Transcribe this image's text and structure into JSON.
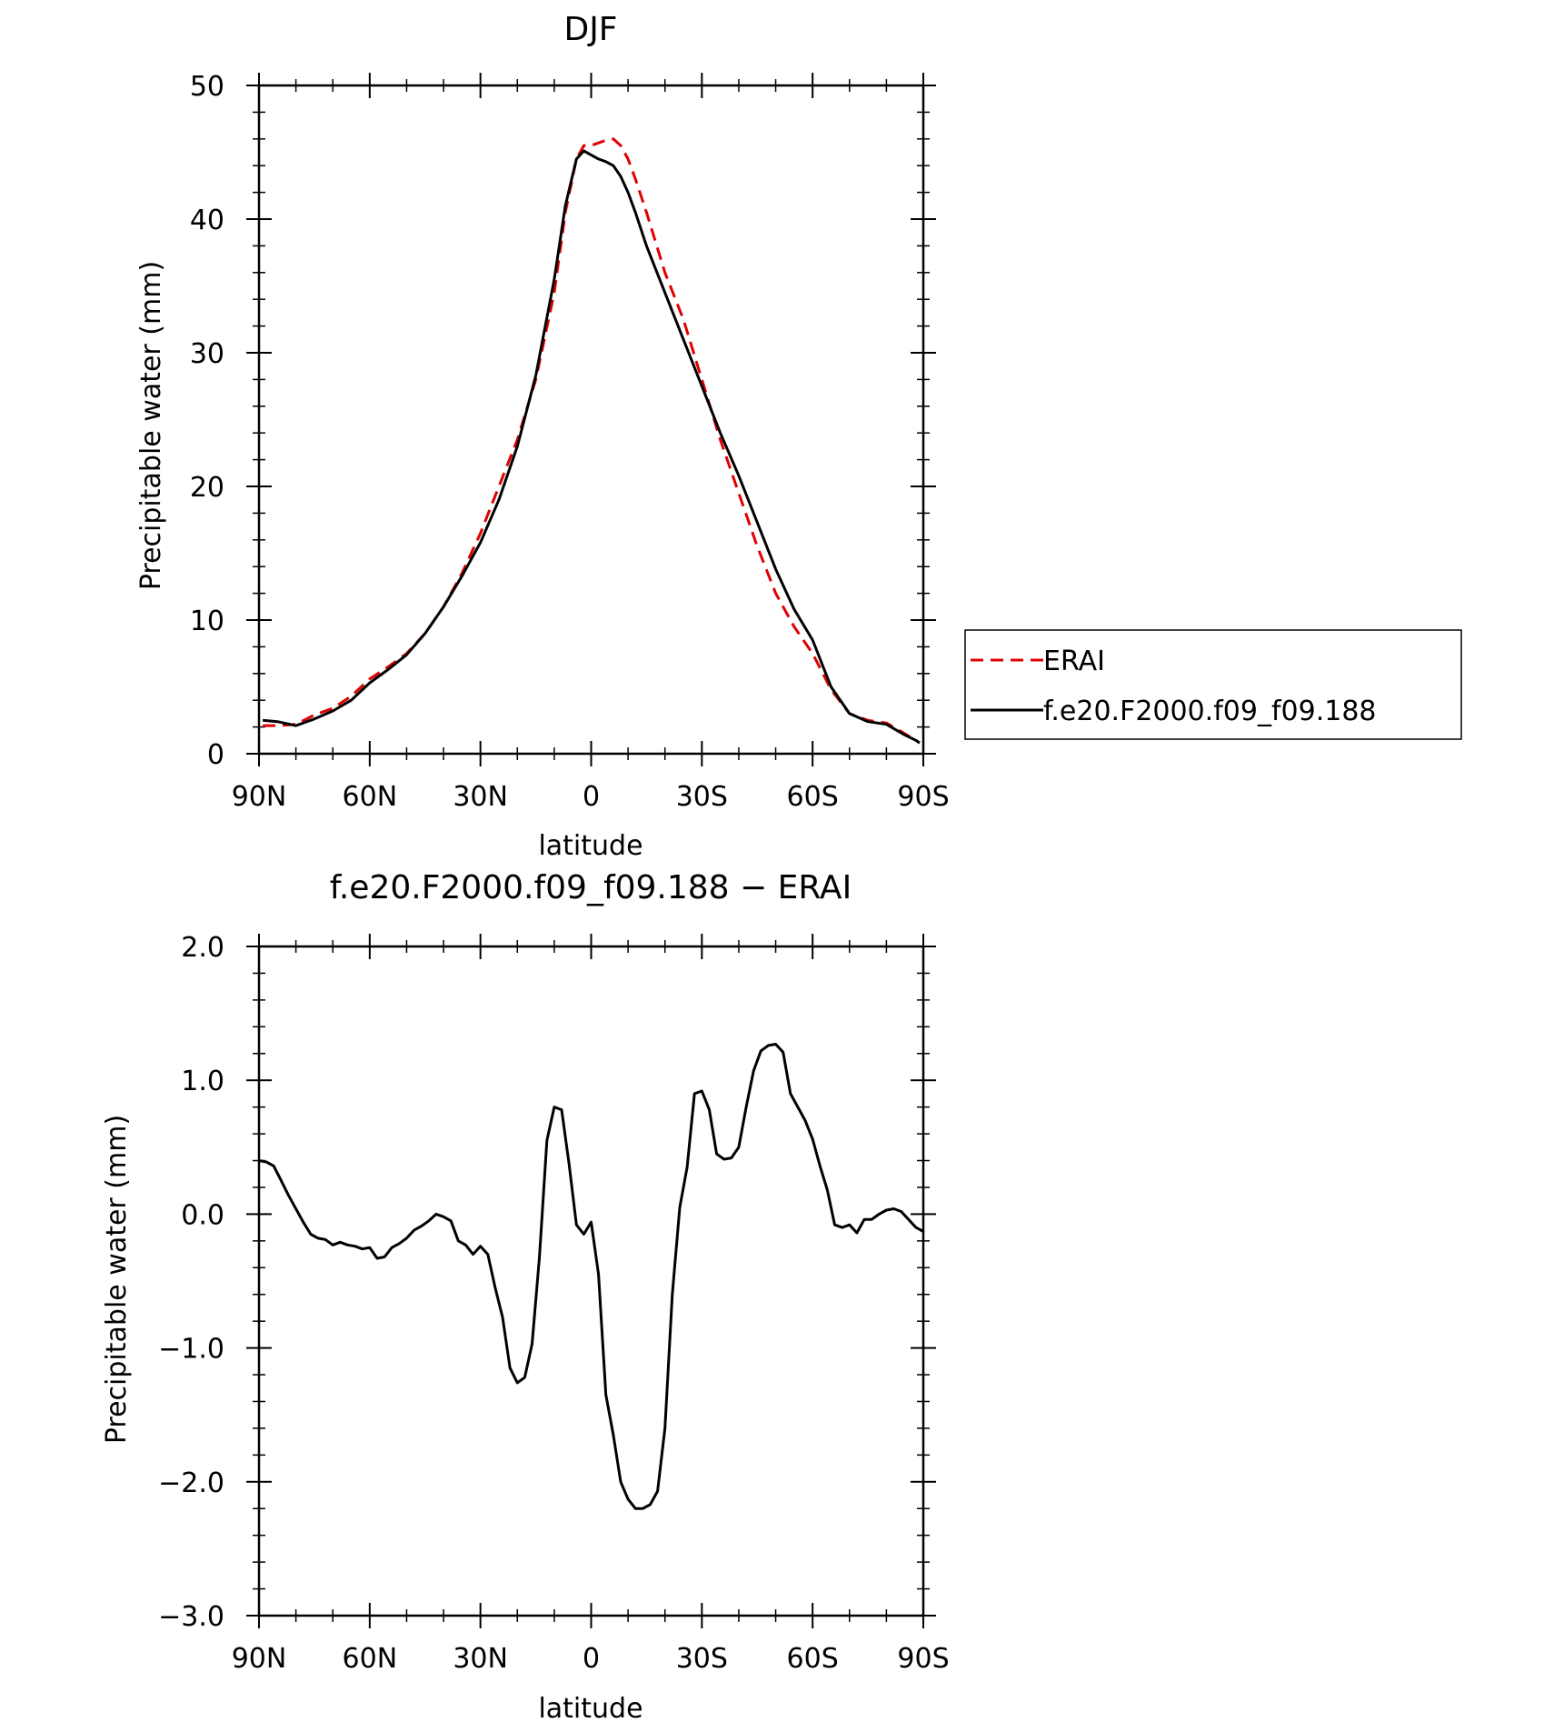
{
  "colors": {
    "erai": "#e00000",
    "model": "#000000",
    "axes": "#000000",
    "background": "#ffffff"
  },
  "chart_data": [
    {
      "type": "line",
      "title": "DJF",
      "xlabel": "latitude",
      "ylabel": "Precipitable water (mm)",
      "xlim": [
        90,
        -90
      ],
      "ylim": [
        0,
        50
      ],
      "x_ticks": [
        90,
        60,
        30,
        0,
        -30,
        -60,
        -90
      ],
      "x_tick_labels": [
        "90N",
        "60N",
        "30N",
        "0",
        "30S",
        "60S",
        "90S"
      ],
      "y_ticks": [
        0,
        10,
        20,
        30,
        40,
        50
      ],
      "y_tick_labels": [
        "0",
        "10",
        "20",
        "30",
        "40",
        "50"
      ],
      "legend": {
        "position": "right",
        "entries": [
          "ERAI",
          "f.e20.F2000.f09_f09.188"
        ]
      },
      "series": [
        {
          "name": "ERAI",
          "style": "dashed",
          "color": "#e00000",
          "x": [
            89,
            85,
            80,
            75,
            70,
            65,
            60,
            55,
            50,
            45,
            40,
            35,
            30,
            25,
            20,
            15,
            10,
            7,
            4,
            2,
            0,
            -2,
            -4,
            -6,
            -8,
            -10,
            -12,
            -15,
            -20,
            -25,
            -30,
            -35,
            -40,
            -45,
            -50,
            -55,
            -60,
            -65,
            -70,
            -75,
            -80,
            -85,
            -88,
            -89
          ],
          "y": [
            2.1,
            2.1,
            2.2,
            2.9,
            3.4,
            4.3,
            5.6,
            6.5,
            7.5,
            9.0,
            11.0,
            13.5,
            16.5,
            20.0,
            23.5,
            28.0,
            34.5,
            40.5,
            44.5,
            45.5,
            45.5,
            45.7,
            45.9,
            46.0,
            45.5,
            44.5,
            43.0,
            40.5,
            36.0,
            32.5,
            28.0,
            23.5,
            19.5,
            15.5,
            12.0,
            9.5,
            7.5,
            4.8,
            3.0,
            2.5,
            2.3,
            1.5,
            1.0,
            0.8
          ]
        },
        {
          "name": "f.e20.F2000.f09_f09.188",
          "style": "solid",
          "color": "#000000",
          "x": [
            89,
            85,
            80,
            75,
            70,
            65,
            60,
            55,
            50,
            45,
            40,
            35,
            30,
            25,
            20,
            15,
            10,
            7,
            4,
            2,
            0,
            -2,
            -4,
            -6,
            -8,
            -10,
            -12,
            -15,
            -20,
            -25,
            -30,
            -35,
            -40,
            -45,
            -50,
            -55,
            -60,
            -65,
            -70,
            -75,
            -80,
            -85,
            -88,
            -89
          ],
          "y": [
            2.5,
            2.4,
            2.1,
            2.6,
            3.2,
            4.0,
            5.3,
            6.3,
            7.4,
            9.0,
            11.0,
            13.3,
            15.8,
            19.0,
            23.0,
            28.3,
            35.5,
            41.0,
            44.5,
            45.1,
            44.8,
            44.5,
            44.3,
            44.0,
            43.2,
            42.0,
            40.5,
            38.0,
            34.5,
            31.0,
            27.5,
            24.0,
            20.8,
            17.3,
            13.8,
            10.8,
            8.5,
            5.0,
            3.0,
            2.4,
            2.2,
            1.4,
            1.0,
            0.8
          ]
        }
      ]
    },
    {
      "type": "line",
      "title": "f.e20.F2000.f09_f09.188 − ERAI",
      "xlabel": "latitude",
      "ylabel": "Precipitable water (mm)",
      "xlim": [
        90,
        -90
      ],
      "ylim": [
        -3,
        2
      ],
      "x_ticks": [
        90,
        60,
        30,
        0,
        -30,
        -60,
        -90
      ],
      "x_tick_labels": [
        "90N",
        "60N",
        "30N",
        "0",
        "30S",
        "60S",
        "90S"
      ],
      "y_ticks": [
        -3,
        -2,
        -1,
        0,
        1,
        2
      ],
      "y_tick_labels": [
        "−3.0",
        "−2.0",
        "−1.0",
        "0.0",
        "1.0",
        "2.0"
      ],
      "series": [
        {
          "style": "solid",
          "color": "#000000",
          "x": [
            90,
            88,
            86,
            84,
            82,
            80,
            78,
            76,
            74,
            72,
            70,
            68,
            66,
            64,
            62,
            60,
            58,
            56,
            54,
            52,
            50,
            48,
            46,
            44,
            42,
            40,
            38,
            36,
            34,
            32,
            30,
            28,
            26,
            24,
            22,
            20,
            18,
            16,
            14,
            12,
            10,
            8,
            6,
            4,
            2,
            0,
            -2,
            -4,
            -6,
            -8,
            -10,
            -12,
            -14,
            -16,
            -18,
            -20,
            -22,
            -24,
            -26,
            -28,
            -30,
            -32,
            -34,
            -36,
            -38,
            -40,
            -42,
            -44,
            -46,
            -48,
            -50,
            -52,
            -54,
            -56,
            -58,
            -60,
            -62,
            -64,
            -66,
            -68,
            -70,
            -72,
            -74,
            -76,
            -78,
            -80,
            -82,
            -84,
            -86,
            -88,
            -90
          ],
          "y": [
            0.4,
            0.39,
            0.36,
            0.25,
            0.14,
            0.04,
            -0.06,
            -0.15,
            -0.18,
            -0.19,
            -0.23,
            -0.21,
            -0.23,
            -0.24,
            -0.26,
            -0.25,
            -0.33,
            -0.32,
            -0.25,
            -0.22,
            -0.18,
            -0.12,
            -0.09,
            -0.05,
            0.0,
            -0.02,
            -0.05,
            -0.2,
            -0.23,
            -0.3,
            -0.24,
            -0.3,
            -0.55,
            -0.77,
            -1.15,
            -1.26,
            -1.22,
            -0.97,
            -0.32,
            0.55,
            0.8,
            0.78,
            0.38,
            -0.08,
            -0.15,
            -0.06,
            -0.45,
            -1.35,
            -1.65,
            -2.0,
            -2.13,
            -2.2,
            -2.2,
            -2.17,
            -2.07,
            -1.6,
            -0.6,
            0.05,
            0.35,
            0.9,
            0.92,
            0.78,
            0.45,
            0.41,
            0.42,
            0.5,
            0.8,
            1.07,
            1.22,
            1.26,
            1.27,
            1.21,
            0.9,
            0.8,
            0.7,
            0.56,
            0.36,
            0.18,
            -0.08,
            -0.1,
            -0.08,
            -0.14,
            -0.04,
            -0.04,
            0.0,
            0.03,
            0.04,
            0.02,
            -0.04,
            -0.1,
            -0.13
          ]
        }
      ]
    }
  ]
}
